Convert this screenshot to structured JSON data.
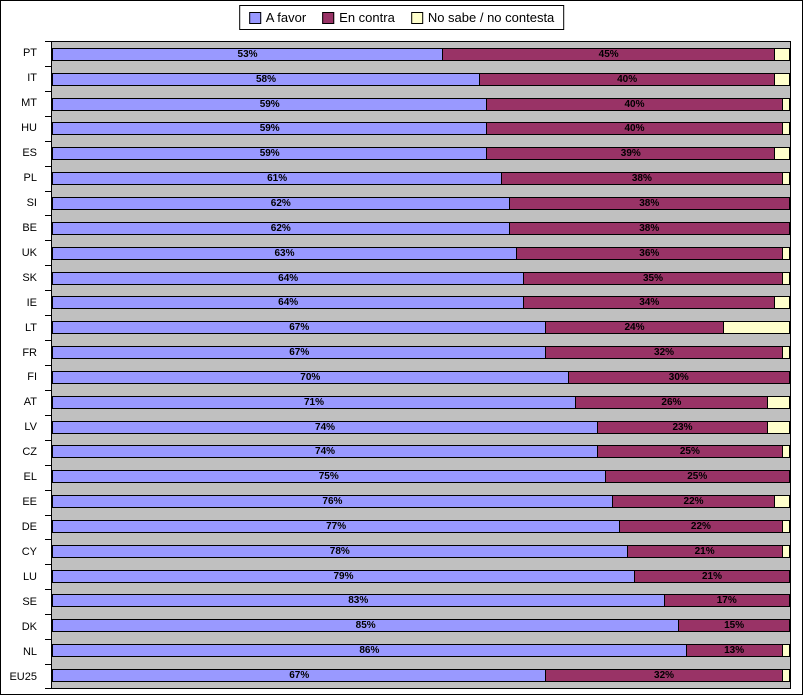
{
  "chart_data": {
    "type": "bar",
    "orientation": "horizontal-stacked",
    "title": "",
    "xlabel": "",
    "ylabel": "",
    "xlim": [
      0,
      100
    ],
    "value_suffix": "%",
    "grid": false,
    "legend_position": "top-center",
    "plot_background": "#C0C0C0",
    "categories": [
      "PT",
      "IT",
      "MT",
      "HU",
      "ES",
      "PL",
      "SI",
      "BE",
      "UK",
      "SK",
      "IE",
      "LT",
      "FR",
      "FI",
      "AT",
      "LV",
      "CZ",
      "EL",
      "EE",
      "DE",
      "CY",
      "LU",
      "SE",
      "DK",
      "NL",
      "EU25"
    ],
    "series": [
      {
        "name": "A favor",
        "color": "#9999FF",
        "labels_visible": true,
        "values": [
          53,
          58,
          59,
          59,
          59,
          61,
          62,
          62,
          63,
          64,
          64,
          67,
          67,
          70,
          71,
          74,
          74,
          75,
          76,
          77,
          78,
          79,
          83,
          85,
          86,
          67
        ]
      },
      {
        "name": "En contra",
        "color": "#993366",
        "labels_visible": true,
        "values": [
          45,
          40,
          40,
          40,
          39,
          38,
          38,
          38,
          36,
          35,
          34,
          24,
          32,
          30,
          26,
          23,
          25,
          25,
          22,
          22,
          21,
          21,
          17,
          15,
          13,
          32
        ]
      },
      {
        "name": "No sabe / no contesta",
        "color": "#FFFFCC",
        "labels_visible": false,
        "values": [
          2,
          2,
          1,
          1,
          2,
          1,
          0,
          0,
          1,
          1,
          2,
          9,
          1,
          0,
          3,
          3,
          1,
          0,
          2,
          1,
          1,
          0,
          0,
          0,
          1,
          1
        ]
      }
    ]
  }
}
